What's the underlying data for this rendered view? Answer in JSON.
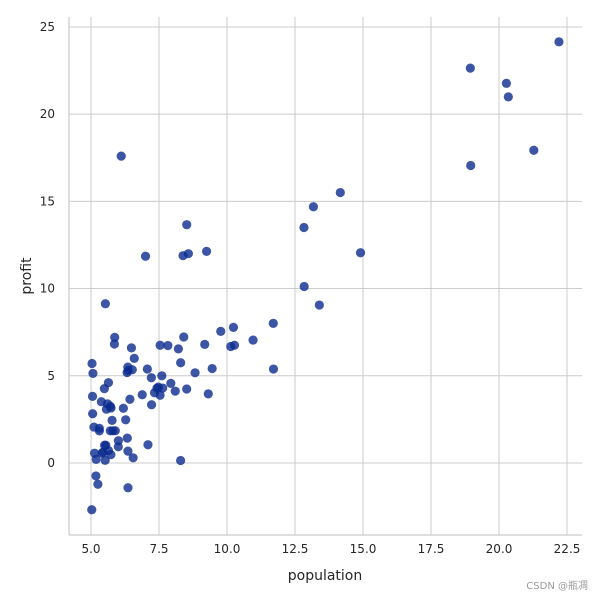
{
  "chart_data": {
    "type": "scatter",
    "title": "",
    "xlabel": "population",
    "ylabel": "profit",
    "xlim": [
      4.19,
      23.05
    ],
    "ylim": [
      -4.13,
      25.57
    ],
    "grid": true,
    "xticks": [
      "5.0",
      "7.5",
      "10.0",
      "12.5",
      "15.0",
      "17.5",
      "20.0",
      "22.5"
    ],
    "xtick_values": [
      5,
      7.5,
      10,
      12.5,
      15,
      17.5,
      20,
      22.5
    ],
    "yticks": [
      "0",
      "5",
      "10",
      "15",
      "20",
      "25"
    ],
    "ytick_values": [
      0,
      5,
      10,
      15,
      20,
      25
    ],
    "point_color": "#0b2a8f",
    "x": [
      6.1101,
      5.5277,
      8.5186,
      7.0032,
      5.8598,
      8.3829,
      7.4764,
      8.5781,
      6.4862,
      5.0546,
      5.7107,
      14.164,
      5.734,
      8.4084,
      5.6407,
      5.3794,
      6.3654,
      5.1301,
      6.4296,
      7.0708,
      6.1891,
      20.27,
      5.4901,
      6.3261,
      5.5649,
      18.945,
      12.828,
      10.957,
      13.176,
      22.203,
      5.2524,
      6.5894,
      9.2482,
      5.8918,
      8.2111,
      7.9334,
      8.0959,
      5.6063,
      12.836,
      6.3534,
      5.4069,
      6.8825,
      11.708,
      5.7737,
      7.8247,
      7.0931,
      5.0702,
      5.8014,
      11.7,
      5.5416,
      7.5402,
      5.3077,
      7.4239,
      7.6031,
      6.3328,
      6.3589,
      6.2742,
      5.6397,
      9.3102,
      9.4536,
      8.8254,
      5.1793,
      21.279,
      14.908,
      18.959,
      7.2182,
      8.2951,
      10.236,
      5.4994,
      20.341,
      10.136,
      7.3345,
      6.0062,
      7.2259,
      5.0269,
      6.5479,
      7.5386,
      5.0365,
      10.274,
      5.1077,
      5.7292,
      5.1884,
      6.3557,
      9.7687,
      6.5159,
      8.5172,
      9.1802,
      6.002,
      5.5204,
      5.0594,
      5.7077,
      7.6366,
      5.8707,
      5.3054,
      8.2934,
      13.394,
      5.4369
    ],
    "y": [
      17.592,
      9.1302,
      13.662,
      11.854,
      6.8233,
      11.886,
      4.3483,
      12,
      6.5987,
      3.8166,
      3.2522,
      15.505,
      3.1551,
      7.2258,
      0.71618,
      3.5129,
      5.3048,
      0.56077,
      3.6518,
      5.3893,
      3.1386,
      21.767,
      4.263,
      5.1875,
      3.0825,
      22.638,
      13.501,
      7.0467,
      14.692,
      24.147,
      -1.22,
      5.9966,
      12.134,
      1.8495,
      6.5426,
      4.5623,
      4.1164,
      3.3928,
      10.117,
      5.4974,
      0.55657,
      3.9115,
      5.3854,
      2.4406,
      6.7318,
      1.0463,
      5.1337,
      1.844,
      8.0043,
      1.0179,
      6.7504,
      1.8396,
      4.2885,
      4.9981,
      1.4233,
      -1.4211,
      2.4756,
      4.6042,
      3.9624,
      5.4141,
      5.1694,
      -0.74279,
      17.929,
      12.054,
      17.054,
      4.8852,
      5.7442,
      7.7754,
      1.0173,
      20.992,
      6.6799,
      4.0259,
      1.2784,
      3.3411,
      -2.6807,
      0.29678,
      3.8845,
      5.7014,
      6.7526,
      2.0576,
      0.47953,
      0.20421,
      0.67861,
      7.5435,
      5.3436,
      4.2415,
      6.7981,
      0.92695,
      0.152,
      2.8214,
      1.8451,
      4.2959,
      7.2029,
      1.9869,
      0.14454,
      9.0551,
      0.61705
    ]
  },
  "watermark": "CSDN @瓶凋"
}
